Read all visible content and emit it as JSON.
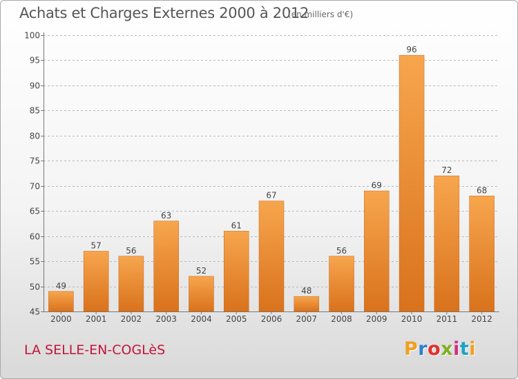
{
  "header": {
    "title": "Achats et Charges Externes 2000 à 2012",
    "unit": "(en milliers d'€)"
  },
  "footer": {
    "place": "LA SELLE-EN-COGLèS",
    "logo": "Proxiti",
    "logo_colors": [
      "#f0a020",
      "#2f7fd0",
      "#e03030",
      "#80b020",
      "#d03080",
      "#20a0c0",
      "#f0a020"
    ]
  },
  "colors": {
    "bar_light": "#f7a64e",
    "bar_dark": "#d9721c",
    "grid": "#b8b8b8",
    "axis": "#777777"
  },
  "chart_data": {
    "type": "bar",
    "title": "Achats et Charges Externes 2000 à 2012",
    "subtitle": "(en milliers d'€)",
    "categories": [
      "2000",
      "2001",
      "2002",
      "2003",
      "2004",
      "2005",
      "2006",
      "2007",
      "2008",
      "2009",
      "2010",
      "2011",
      "2012"
    ],
    "values": [
      49,
      57,
      56,
      63,
      52,
      61,
      67,
      48,
      56,
      69,
      96,
      72,
      68
    ],
    "ylim": [
      45,
      100
    ],
    "yticks": [
      45,
      50,
      55,
      60,
      65,
      70,
      75,
      80,
      85,
      90,
      95,
      100
    ],
    "xlabel": "",
    "ylabel": "",
    "grid": "horizontal dashed",
    "data_labels": true
  }
}
